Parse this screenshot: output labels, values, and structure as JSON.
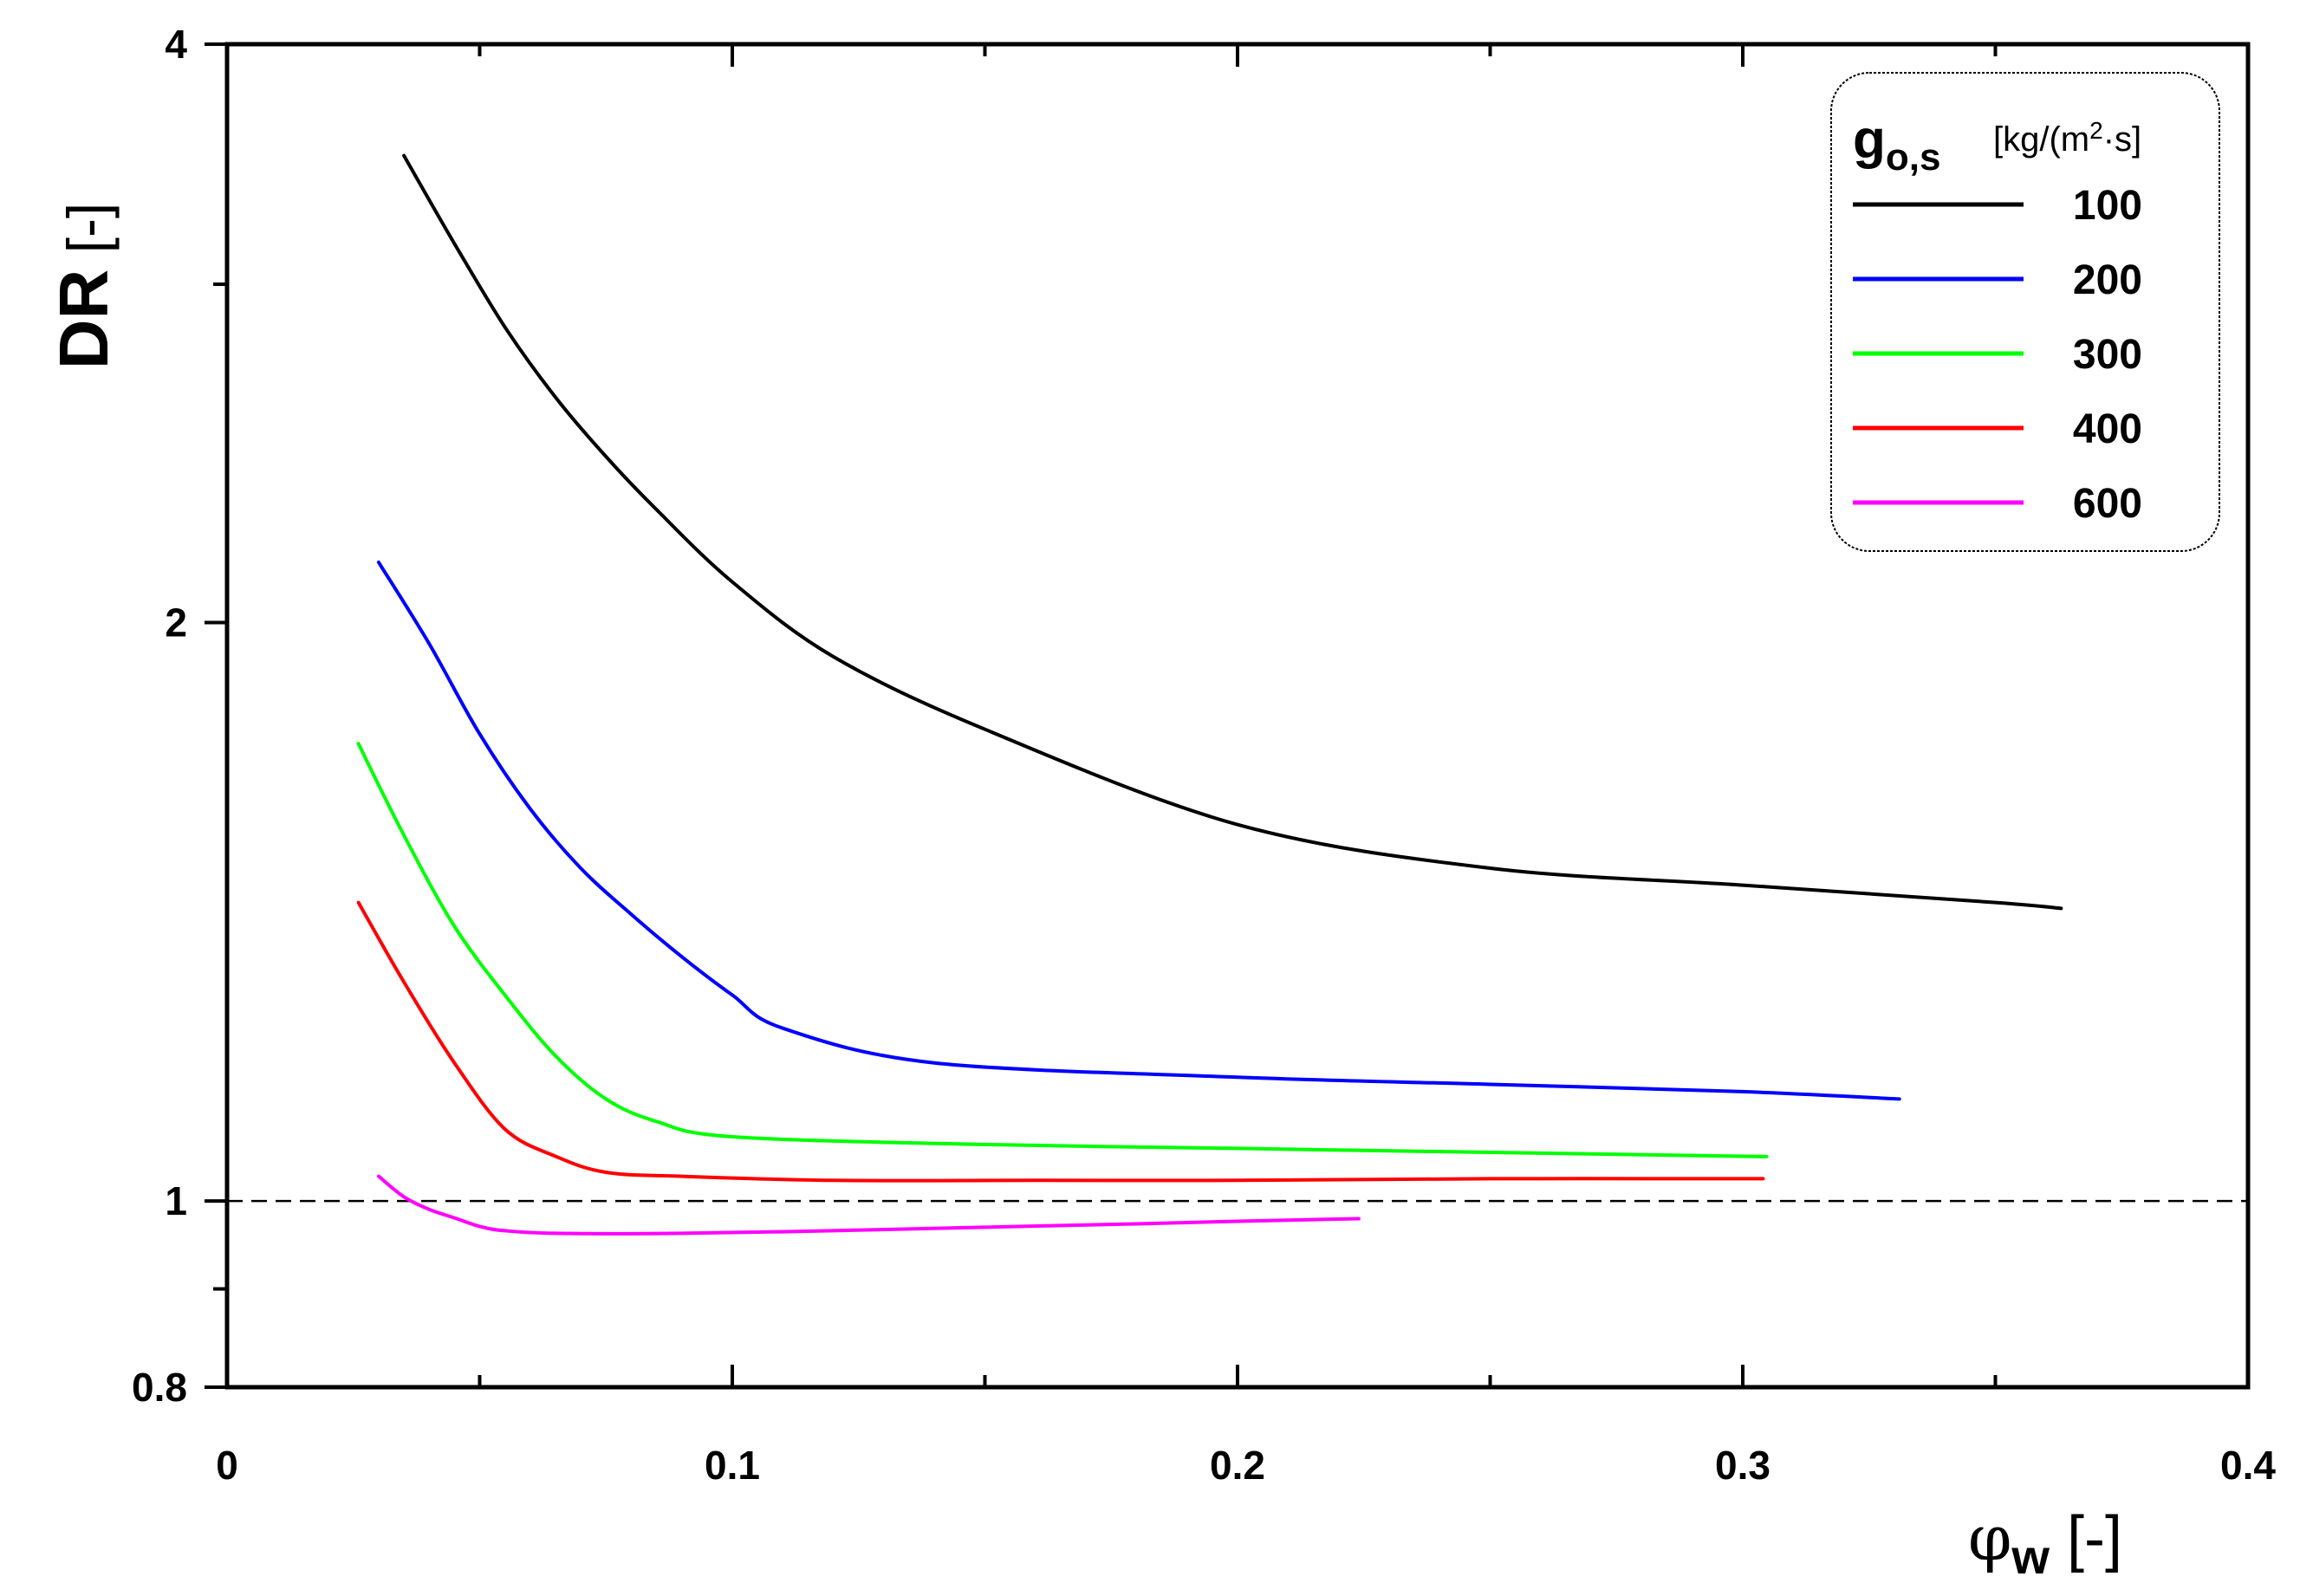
{
  "chart_data": {
    "type": "line",
    "title": "",
    "xlabel": "φw [-]",
    "xlabel_parts": {
      "symbol": "φ",
      "subscript": "w",
      "unit": " [-]"
    },
    "ylabel": "DR [-]",
    "ylabel_parts": {
      "name": "DR",
      "unit": " [-]"
    },
    "xlim": [
      0,
      0.4
    ],
    "ylim": [
      0.8,
      4
    ],
    "yscale": "log",
    "x_ticks": [
      0,
      0.1,
      0.2,
      0.3,
      0.4
    ],
    "x_tick_labels": [
      "0",
      "0.1",
      "0.2",
      "0.3",
      "0.4"
    ],
    "x_minor_ticks": [
      0.05,
      0.15,
      0.25,
      0.35
    ],
    "y_ticks": [
      0.8,
      1,
      2,
      4
    ],
    "y_tick_labels": [
      "0.8",
      "1",
      "2",
      "4"
    ],
    "y_minor_ticks": [
      0.9,
      3
    ],
    "grid": false,
    "reference_line": {
      "y": 1,
      "style": "dashed",
      "color": "#000000"
    },
    "legend": {
      "position": "top-right",
      "title": "go,s",
      "title_parts": {
        "symbol": "g",
        "subscript": "o,s",
        "unit_pre": "[kg/(m",
        "unit_sup": "2",
        "unit_post": "·s]"
      },
      "unit": "[kg/(m2·s]"
    },
    "series": [
      {
        "name": "100",
        "color": "#000000",
        "x": [
          0.035,
          0.045,
          0.055,
          0.065,
          0.075,
          0.085,
          0.1,
          0.12,
          0.15,
          0.2,
          0.25,
          0.3,
          0.35,
          0.363
        ],
        "values": [
          3.5,
          3.15,
          2.85,
          2.62,
          2.44,
          2.29,
          2.1,
          1.92,
          1.76,
          1.57,
          1.49,
          1.46,
          1.43,
          1.42
        ]
      },
      {
        "name": "200",
        "color": "#0000ff",
        "x": [
          0.03,
          0.04,
          0.05,
          0.06,
          0.07,
          0.08,
          0.09,
          0.1,
          0.11,
          0.14,
          0.2,
          0.25,
          0.3,
          0.331
        ],
        "values": [
          2.15,
          1.95,
          1.75,
          1.6,
          1.49,
          1.41,
          1.34,
          1.28,
          1.23,
          1.18,
          1.16,
          1.15,
          1.14,
          1.13
        ]
      },
      {
        "name": "300",
        "color": "#00ff00",
        "x": [
          0.026,
          0.035,
          0.045,
          0.055,
          0.065,
          0.075,
          0.085,
          0.1,
          0.15,
          0.2,
          0.25,
          0.3,
          0.303
        ],
        "values": [
          1.73,
          1.55,
          1.39,
          1.28,
          1.19,
          1.13,
          1.1,
          1.08,
          1.07,
          1.065,
          1.06,
          1.055,
          1.055
        ]
      },
      {
        "name": "400",
        "color": "#ff0000",
        "x": [
          0.026,
          0.035,
          0.045,
          0.055,
          0.065,
          0.075,
          0.09,
          0.12,
          0.16,
          0.2,
          0.25,
          0.3,
          0.301
        ],
        "values": [
          1.43,
          1.3,
          1.18,
          1.09,
          1.055,
          1.035,
          1.03,
          1.025,
          1.025,
          1.025,
          1.027,
          1.027,
          1.027
        ]
      },
      {
        "name": "600",
        "color": "#ff00ff",
        "x": [
          0.03,
          0.035,
          0.04,
          0.045,
          0.05,
          0.055,
          0.065,
          0.09,
          0.12,
          0.15,
          0.18,
          0.2,
          0.224
        ],
        "values": [
          1.03,
          1.005,
          0.99,
          0.98,
          0.97,
          0.965,
          0.962,
          0.962,
          0.965,
          0.969,
          0.973,
          0.976,
          0.979
        ]
      }
    ]
  }
}
